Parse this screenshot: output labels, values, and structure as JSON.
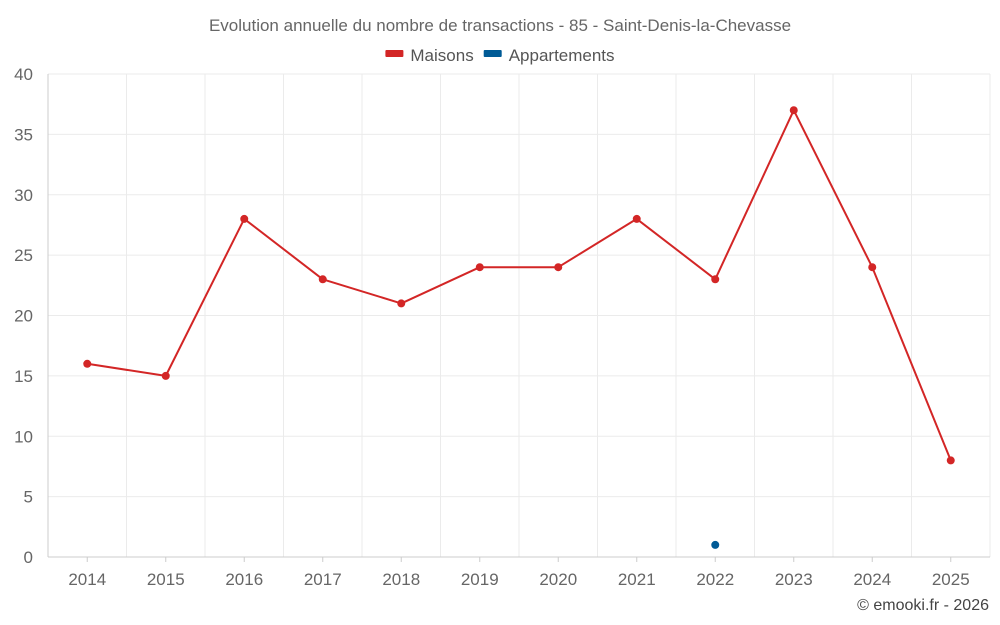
{
  "chart_data": {
    "type": "line",
    "title": "Evolution annuelle du nombre de transactions - 85 - Saint-Denis-la-Chevasse",
    "categories": [
      "2014",
      "2015",
      "2016",
      "2017",
      "2018",
      "2019",
      "2020",
      "2021",
      "2022",
      "2023",
      "2024",
      "2025"
    ],
    "series": [
      {
        "name": "Maisons",
        "color": "#d32626",
        "values": [
          16,
          15,
          28,
          23,
          21,
          24,
          24,
          28,
          23,
          37,
          24,
          8
        ]
      },
      {
        "name": "Appartements",
        "color": "#005b96",
        "values": [
          null,
          null,
          null,
          null,
          null,
          null,
          null,
          null,
          1,
          null,
          null,
          null
        ]
      }
    ],
    "ylim": [
      0,
      40
    ],
    "yticks": [
      0,
      5,
      10,
      15,
      20,
      25,
      30,
      35,
      40
    ],
    "ytick_labels": [
      "0",
      "5",
      "10",
      "15",
      "20",
      "25",
      "30",
      "35",
      "40"
    ],
    "grid": true,
    "legend_position": "top-center",
    "xlabel": "",
    "ylabel": ""
  },
  "credit": "© emooki.fr - 2026"
}
